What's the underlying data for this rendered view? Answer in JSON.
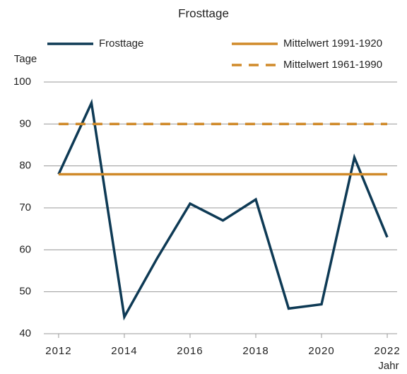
{
  "chart_data": {
    "type": "line",
    "title": "Frosttage",
    "y_label": "Tage",
    "x_label": "Jahr",
    "x": [
      2012,
      2013,
      2014,
      2015,
      2016,
      2017,
      2018,
      2019,
      2020,
      2021,
      2022
    ],
    "series": [
      {
        "name": "Frosttage",
        "color": "#0e3a55",
        "style": "solid",
        "values": [
          78,
          95,
          44,
          58,
          71,
          67,
          72,
          46,
          47,
          82,
          63
        ]
      },
      {
        "name": "Mittelwert 1991-1920",
        "color": "#d08a2a",
        "style": "solid",
        "values": [
          78,
          78,
          78,
          78,
          78,
          78,
          78,
          78,
          78,
          78,
          78
        ]
      },
      {
        "name": "Mittelwert 1961-1990",
        "color": "#d08a2a",
        "style": "dashed",
        "values": [
          90,
          90,
          90,
          90,
          90,
          90,
          90,
          90,
          90,
          90,
          90
        ]
      }
    ],
    "xlim": [
      2011.55,
      2022.3
    ],
    "xticks": [
      2012,
      2014,
      2016,
      2018,
      2020,
      2022
    ],
    "ylim": [
      40,
      100
    ],
    "yticks": [
      40,
      50,
      60,
      70,
      80,
      90,
      100
    ],
    "grid": true
  }
}
